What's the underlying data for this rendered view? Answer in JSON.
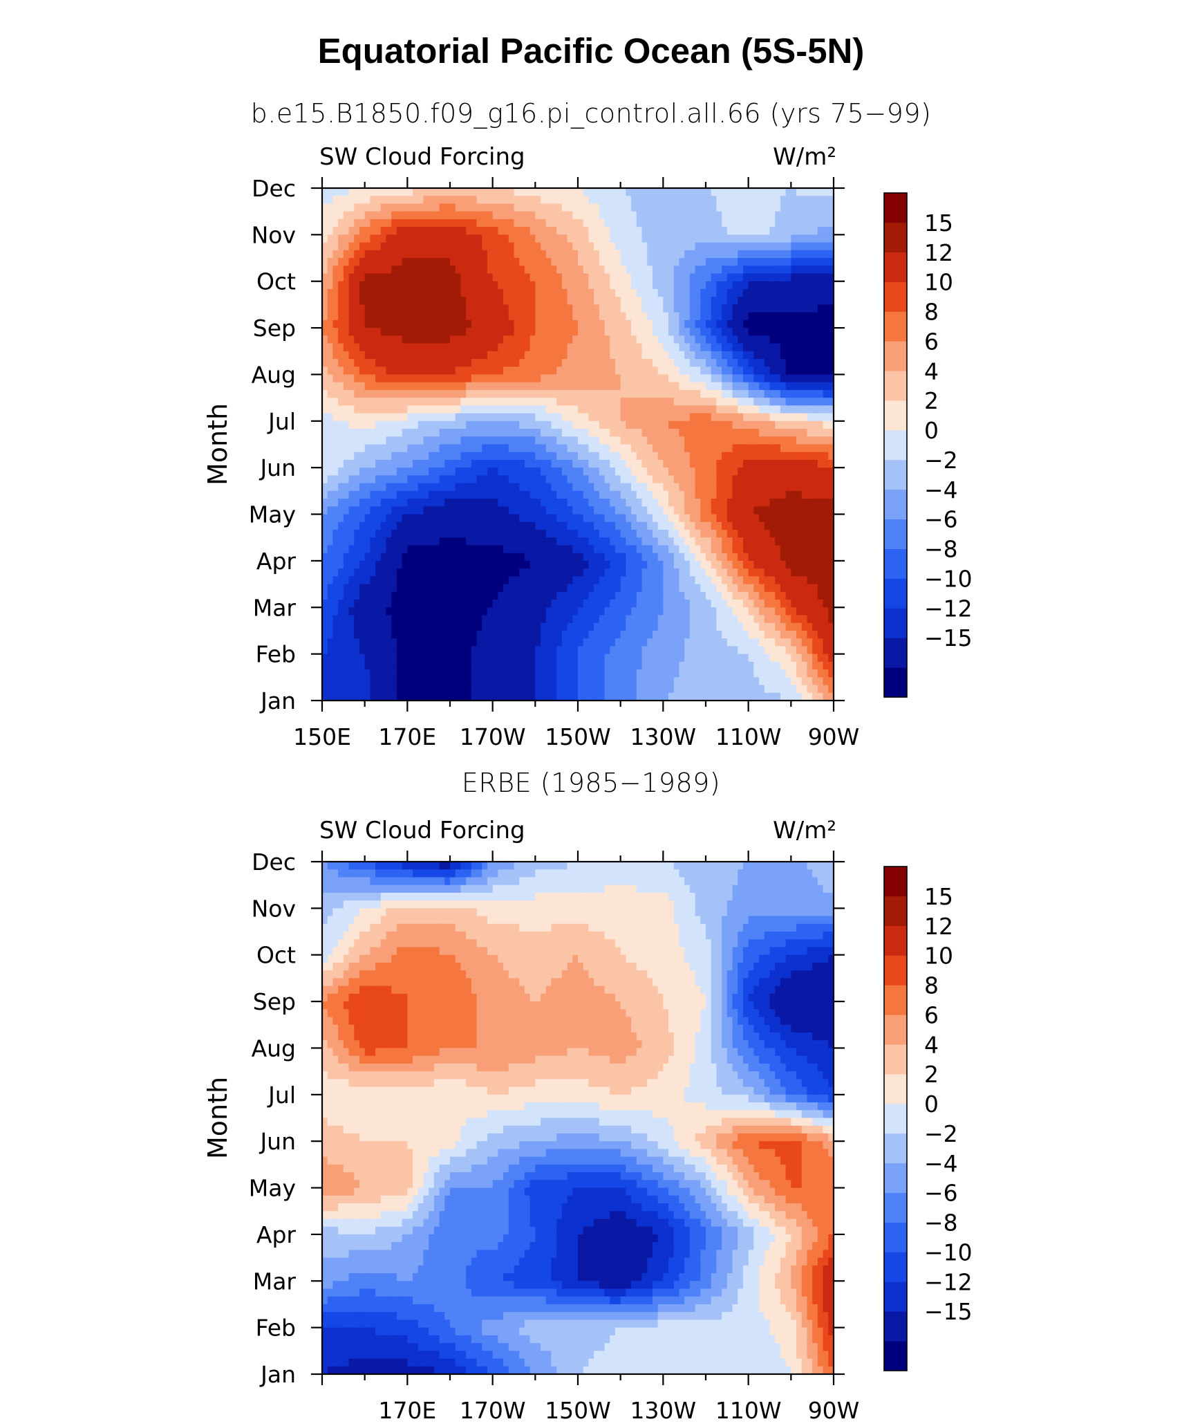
{
  "figure": {
    "title": "Equatorial Pacific Ocean (5S-5N)",
    "panel_titles": [
      "b.e15.B1850.f09_g16.pi_control.all.66 (yrs 75−99)",
      "ERBE (1985−1989)"
    ]
  },
  "colors": {
    "levels": [
      "#00007e",
      "#0a18a6",
      "#0d31cf",
      "#1546e6",
      "#2d63f2",
      "#4f82f7",
      "#7aa2f8",
      "#a5c2f8",
      "#d3e3fb",
      "#fde5d5",
      "#fcc4a6",
      "#f99f77",
      "#f5763f",
      "#e9471c",
      "#cc2a10",
      "#a21b06",
      "#850000"
    ]
  },
  "chart_data": [
    {
      "type": "heatmap",
      "title": "b.e15.B1850.f09_g16.pi_control.all.66 (yrs 75−99)",
      "left_label": "SW Cloud Forcing",
      "right_label": "W/m²",
      "xlabel": "",
      "ylabel": "Month",
      "x_ticks": [
        "150E",
        "170E",
        "170W",
        "150W",
        "130W",
        "110W",
        "90W"
      ],
      "y_ticks": [
        "Jan",
        "Feb",
        "Mar",
        "Apr",
        "May",
        "Jun",
        "Jul",
        "Aug",
        "Sep",
        "Oct",
        "Nov",
        "Dec"
      ],
      "colorbar_levels": [
        -15,
        -12,
        -10,
        -8,
        -6,
        -4,
        -2,
        0,
        2,
        4,
        6,
        8,
        10,
        12,
        15
      ],
      "colorbar_labels": [
        "15",
        "12",
        "10",
        "8",
        "6",
        "4",
        "2",
        "0",
        "−2",
        "−4",
        "−6",
        "−8",
        "−10",
        "−12",
        "−15"
      ],
      "x_longitude": [
        150,
        160,
        170,
        180,
        190,
        200,
        210,
        220,
        230,
        240,
        250,
        260,
        270
      ],
      "y_month": [
        "Jan",
        "Feb",
        "Mar",
        "Apr",
        "May",
        "Jun",
        "Jul",
        "Aug",
        "Sep",
        "Oct",
        "Nov",
        "Dec"
      ],
      "z": [
        [
          -10,
          -11,
          -16,
          -16,
          -14,
          -12,
          -8,
          -5,
          -2,
          -1,
          -1,
          0,
          8
        ],
        [
          -10,
          -12,
          -16,
          -16,
          -14,
          -12,
          -8,
          -5,
          -3,
          -1,
          0,
          4,
          14
        ],
        [
          -8,
          -14,
          -16,
          -16,
          -15,
          -13,
          -10,
          -7,
          -4,
          -1,
          4,
          12,
          16
        ],
        [
          -6,
          -10,
          -16,
          -16,
          -16,
          -15,
          -13,
          -9,
          -4,
          3,
          12,
          16,
          16
        ],
        [
          -4,
          -8,
          -12,
          -14,
          -13,
          -11,
          -8,
          -4,
          2,
          9,
          15,
          16,
          16
        ],
        [
          2,
          -2,
          -4,
          -7,
          -10,
          -8,
          -4,
          1,
          6,
          9,
          13,
          14,
          12
        ],
        [
          1,
          3,
          1,
          -1,
          -2,
          -1,
          3,
          6,
          8,
          9,
          7,
          4,
          3
        ],
        [
          5,
          10,
          13,
          12,
          10,
          9,
          7,
          6,
          4,
          0,
          -8,
          -16,
          -16
        ],
        [
          8,
          15,
          16,
          16,
          14,
          10,
          8,
          5,
          1,
          -8,
          -16,
          -16,
          -16
        ],
        [
          6,
          16,
          16,
          16,
          12,
          10,
          7,
          3,
          -1,
          -6,
          -12,
          -13,
          -14
        ],
        [
          3,
          9,
          14,
          14,
          11,
          8,
          5,
          1,
          -1,
          -1,
          1,
          -1,
          -3
        ],
        [
          1,
          2,
          3,
          4,
          4,
          3,
          2,
          0,
          -1,
          0,
          1,
          0,
          1
        ]
      ]
    },
    {
      "type": "heatmap",
      "title": "ERBE (1985−1989)",
      "left_label": "SW Cloud Forcing",
      "right_label": "W/m²",
      "xlabel": "",
      "ylabel": "Month",
      "x_ticks": [
        "170E",
        "170W",
        "150W",
        "130W",
        "110W",
        "90W"
      ],
      "y_ticks": [
        "Jan",
        "Feb",
        "Mar",
        "Apr",
        "May",
        "Jun",
        "Jul",
        "Aug",
        "Sep",
        "Oct",
        "Nov",
        "Dec"
      ],
      "colorbar_levels": [
        -15,
        -12,
        -10,
        -8,
        -6,
        -4,
        -2,
        0,
        2,
        4,
        6,
        8,
        10,
        12,
        15
      ],
      "colorbar_labels": [
        "15",
        "12",
        "10",
        "8",
        "6",
        "4",
        "2",
        "0",
        "−2",
        "−4",
        "−6",
        "−8",
        "−10",
        "−12",
        "−15"
      ],
      "x_longitude": [
        150,
        160,
        170,
        180,
        190,
        200,
        210,
        220,
        230,
        240,
        250,
        260,
        270
      ],
      "y_month": [
        "Jan",
        "Feb",
        "Mar",
        "Apr",
        "May",
        "Jun",
        "Jul",
        "Aug",
        "Sep",
        "Oct",
        "Nov",
        "Dec"
      ],
      "z": [
        [
          -12,
          -13,
          -13,
          -12,
          -8,
          -4,
          0,
          1,
          1,
          1,
          0,
          2,
          10
        ],
        [
          -10,
          -10,
          -9,
          -6,
          -3,
          -1,
          -1,
          0,
          1,
          1,
          1,
          3,
          13
        ],
        [
          -3,
          -5,
          -4,
          -5,
          -8,
          -9,
          -12,
          -14,
          -10,
          -5,
          1,
          6,
          15
        ],
        [
          -1,
          0,
          -2,
          -6,
          -5,
          -8,
          -12,
          -14,
          -12,
          -6,
          -1,
          4,
          10
        ],
        [
          8,
          6,
          5,
          -4,
          -4,
          -9,
          -10,
          -10,
          -6,
          -2,
          6,
          10,
          10
        ],
        [
          5,
          4,
          4,
          3,
          -1,
          -2,
          -3,
          -2,
          1,
          5,
          10,
          11,
          7
        ],
        [
          3,
          2,
          3,
          2,
          4,
          3,
          3,
          4,
          3,
          1,
          -1,
          -6,
          -10
        ],
        [
          5,
          11,
          10,
          8,
          8,
          7,
          6,
          7,
          5,
          1,
          -6,
          -10,
          -12
        ],
        [
          8,
          12,
          10,
          10,
          7,
          6,
          7,
          6,
          4,
          2,
          -10,
          -15,
          -15
        ],
        [
          1,
          6,
          9,
          8,
          6,
          5,
          6,
          4,
          3,
          1,
          -7,
          -10,
          -12
        ],
        [
          -1,
          2,
          5,
          5,
          3,
          3,
          3,
          3,
          3,
          -1,
          -3,
          -3,
          -3
        ],
        [
          -4,
          -8,
          -12,
          -14,
          -4,
          -1,
          0,
          1,
          0,
          -1,
          -2,
          -3,
          0
        ]
      ]
    }
  ]
}
